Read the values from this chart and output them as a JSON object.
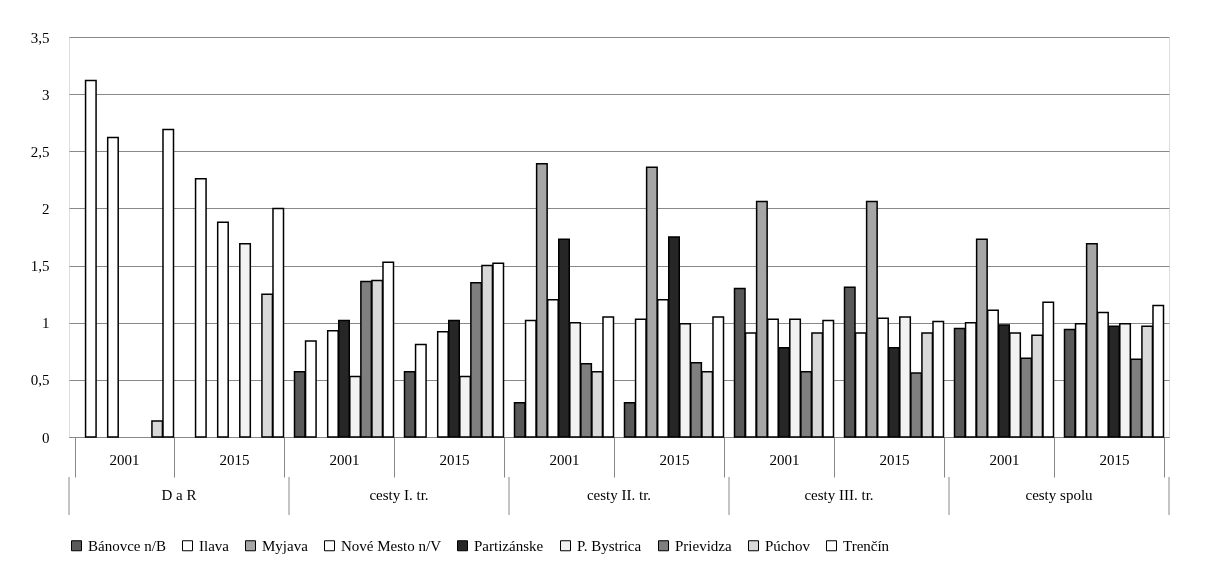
{
  "chart_data": {
    "type": "bar",
    "categories": [
      "2001",
      "2015",
      "2001",
      "2015",
      "2001",
      "2015",
      "2001",
      "2015",
      "2001",
      "2015"
    ],
    "annotations": [
      "D a R",
      "cesty I. tr.",
      "cesty II. tr.",
      "cesty III. tr.",
      "cesty spolu"
    ],
    "series": [
      {
        "name": "Bánovce n/B",
        "color": "#595959",
        "values": [
          null,
          null,
          0.57,
          0.57,
          0.3,
          0.3,
          1.3,
          1.31,
          0.95,
          0.94
        ]
      },
      {
        "name": "Ilava",
        "color": "#ffffff",
        "values": [
          3.12,
          2.26,
          0.84,
          0.81,
          1.02,
          1.03,
          0.91,
          0.91,
          1.0,
          0.99
        ]
      },
      {
        "name": "Myjava",
        "color": "#a6a6a6",
        "values": [
          null,
          null,
          null,
          null,
          2.39,
          2.36,
          2.06,
          2.06,
          1.73,
          1.69
        ]
      },
      {
        "name": "Nové Mesto n/V",
        "color": "#ffffff",
        "values": [
          2.62,
          1.88,
          0.93,
          0.92,
          1.2,
          1.2,
          1.03,
          1.04,
          1.11,
          1.09
        ]
      },
      {
        "name": "Partizánske",
        "color": "#262626",
        "values": [
          null,
          null,
          1.02,
          1.02,
          1.73,
          1.75,
          0.78,
          0.78,
          0.98,
          0.97
        ]
      },
      {
        "name": "P. Bystrica",
        "color": "#f2f2f2",
        "values": [
          null,
          1.69,
          0.53,
          0.53,
          1.0,
          0.99,
          1.03,
          1.05,
          0.91,
          0.99
        ]
      },
      {
        "name": "Prievidza",
        "color": "#7f7f7f",
        "values": [
          null,
          null,
          1.36,
          1.35,
          0.64,
          0.65,
          0.57,
          0.56,
          0.69,
          0.68
        ]
      },
      {
        "name": "Púchov",
        "color": "#d9d9d9",
        "values": [
          0.14,
          1.25,
          1.37,
          1.5,
          0.57,
          0.57,
          0.91,
          0.91,
          0.89,
          0.97
        ]
      },
      {
        "name": "Trenčín",
        "color": "#ffffff",
        "values": [
          2.69,
          2.0,
          1.53,
          1.52,
          1.05,
          1.05,
          1.02,
          1.01,
          1.18,
          1.15
        ]
      }
    ],
    "ylim": [
      0,
      3.5
    ],
    "yticks": [
      0,
      {
        "value": 0.5,
        "label": "0,5"
      },
      1,
      {
        "value": 1.5,
        "label": "1,5"
      },
      2,
      {
        "value": 2.5,
        "label": "2,5"
      },
      3,
      {
        "value": 3.5,
        "label": "3,5"
      }
    ],
    "grid": "y",
    "legend": "bottom"
  }
}
